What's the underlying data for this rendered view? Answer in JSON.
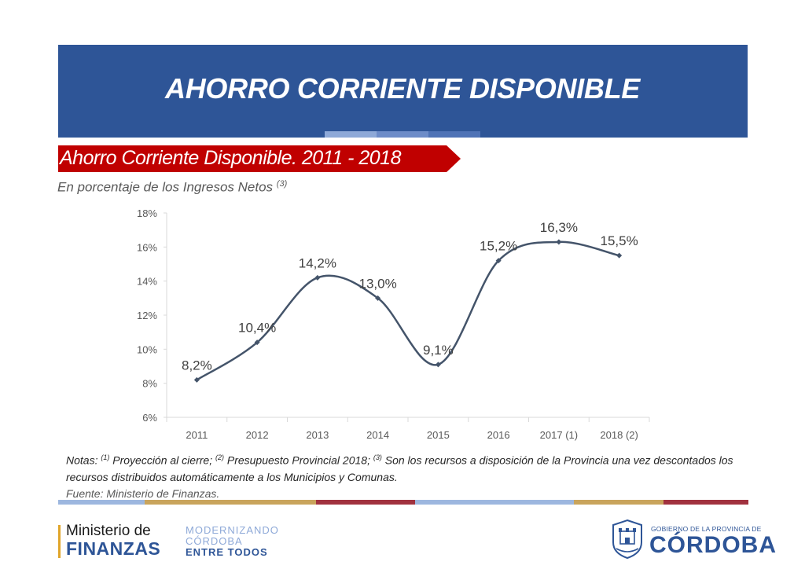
{
  "header": {
    "title": "AHORRO CORRIENTE DISPONIBLE",
    "colors": {
      "banner": "#2e5597",
      "stripe_a": "#8ea9d8",
      "stripe_b": "#5b7ec1"
    }
  },
  "section": {
    "tag_label": "Ahorro Corriente Disponible. 2011 - 2018",
    "tag_color": "#c00000",
    "subtitle": "En porcentaje de los Ingresos Netos",
    "subtitle_note_ref": "(3)"
  },
  "chart_data": {
    "type": "line",
    "title": "",
    "xlabel": "",
    "ylabel": "",
    "categories": [
      "2011",
      "2012",
      "2013",
      "2014",
      "2015",
      "2016",
      "2017 (1)",
      "2018 (2)"
    ],
    "series": [
      {
        "values": [
          8.2,
          10.4,
          14.2,
          13.0,
          9.1,
          15.2,
          16.3,
          15.5
        ],
        "labels": [
          "8,2%",
          "10,4%",
          "14,2%",
          "13,0%",
          "9,1%",
          "15,2%",
          "16,3%",
          "15,5%"
        ],
        "color": "#44546a",
        "smooth": true
      }
    ],
    "ylim": [
      6,
      18
    ],
    "yticks": [
      "6%",
      "8%",
      "10%",
      "12%",
      "14%",
      "16%",
      "18%"
    ],
    "ytick_values": [
      6,
      8,
      10,
      12,
      14,
      16,
      18
    ],
    "grid": false,
    "legend": "none"
  },
  "notes": {
    "prefix": "Notas:",
    "n1_ref": "(1)",
    "n1_text": "Proyección al cierre;",
    "n2_ref": "(2)",
    "n2_text": "Presupuesto Provincial 2018;",
    "n3_ref": "(3)",
    "n3_text": "Son los recursos a disposición de la Provincia una vez descontados los recursos distribuidos automáticamente a los Municipios y Comunas.",
    "source": "Fuente: Ministerio de Finanzas."
  },
  "footer": {
    "ministerio_line1": "Ministerio de",
    "ministerio_line2": "FINANZAS",
    "slogan_1": "MODERNIZANDO",
    "slogan_2": "CÓRDOBA",
    "slogan_3": "ENTRE TODOS",
    "gobierno_small": "GOBIERNO DE LA PROVINCIA DE",
    "gobierno_big": "CÓRDOBA",
    "bar_colors": [
      "#9db7df",
      "#c9a45c",
      "#a1323f",
      "#9db7df",
      "#c9a45c",
      "#a1323f"
    ]
  }
}
